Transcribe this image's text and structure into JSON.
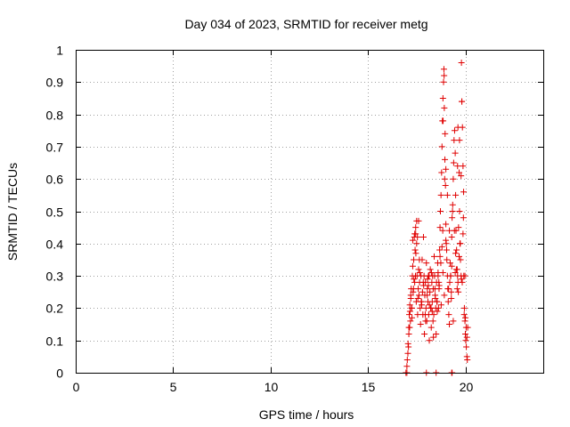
{
  "chart_data": {
    "type": "scatter",
    "title": "Day 034 of 2023, SRMTID for receiver metg",
    "xlabel": "GPS time / hours",
    "ylabel": "SRMTID / TECUs",
    "xlim": [
      0,
      24
    ],
    "ylim": [
      0,
      1
    ],
    "x_ticks": [
      0,
      5,
      10,
      15,
      20
    ],
    "x_tick_labels": [
      "0",
      "5",
      "10",
      "15",
      "20"
    ],
    "y_ticks": [
      0,
      0.1,
      0.2,
      0.3,
      0.4,
      0.5,
      0.6,
      0.7,
      0.8,
      0.9,
      1
    ],
    "y_tick_labels": [
      "0",
      "0.1",
      "0.2",
      "0.3",
      "0.4",
      "0.5",
      "0.6",
      "0.7",
      "0.8",
      "0.9",
      "1"
    ],
    "grid": true,
    "legend": "none",
    "marker": "plus",
    "color": "#e00000",
    "series": [
      {
        "name": "SRMTID",
        "x": [
          17.0,
          17.05,
          17.1,
          17.12,
          17.15,
          17.18,
          17.2,
          17.22,
          17.25,
          17.28,
          17.3,
          17.32,
          17.35,
          17.38,
          17.4,
          17.42,
          17.45,
          17.48,
          17.5,
          17.52,
          17.55,
          17.58,
          17.6,
          17.62,
          17.65,
          17.68,
          17.7,
          17.72,
          17.75,
          17.78,
          17.8,
          17.82,
          17.85,
          17.88,
          17.9,
          17.92,
          17.95,
          17.98,
          18.0,
          18.02,
          18.05,
          18.08,
          18.1,
          18.12,
          18.15,
          18.18,
          18.2,
          18.22,
          18.25,
          18.28,
          18.3,
          18.32,
          18.35,
          18.38,
          18.4,
          18.42,
          18.45,
          18.48,
          18.5,
          18.52,
          18.55,
          18.58,
          18.6,
          18.62,
          18.65,
          18.68,
          18.7,
          18.72,
          18.75,
          18.78,
          18.8,
          18.82,
          18.85,
          18.88,
          18.9,
          18.92,
          18.95,
          18.98,
          19.0,
          19.02,
          19.05,
          19.08,
          19.1,
          19.12,
          19.15,
          19.18,
          19.2,
          19.22,
          19.25,
          19.28,
          19.3,
          19.32,
          19.35,
          19.38,
          19.4,
          19.42,
          19.45,
          19.48,
          19.5,
          19.52,
          19.55,
          19.58,
          19.6,
          19.62,
          19.65,
          19.68,
          19.7,
          19.72,
          19.75,
          19.78,
          19.8,
          19.82,
          19.85,
          19.88,
          19.9,
          19.92,
          19.95,
          19.98,
          20.0,
          20.02,
          20.05,
          20.08,
          20.1,
          20.12,
          17.08,
          17.14,
          17.24,
          17.34,
          17.44,
          17.54,
          17.64,
          17.74,
          17.84,
          17.94,
          18.04,
          18.14,
          18.24,
          18.34,
          18.44,
          18.54,
          18.64,
          18.74,
          18.84,
          18.94,
          19.04,
          19.14,
          19.24,
          19.34,
          19.44,
          19.54,
          19.64,
          19.74,
          19.84,
          19.94,
          20.04,
          18.86,
          18.91,
          18.96,
          19.62,
          19.7,
          19.82,
          19.91,
          17.3,
          17.45,
          17.6,
          18.1,
          18.3,
          18.6,
          18.8,
          19.0,
          19.3,
          19.5,
          19.8,
          20.0,
          17.02,
          17.06,
          17.1,
          17.16,
          17.2,
          17.26,
          17.36,
          17.46,
          17.56,
          17.66,
          17.76,
          17.86,
          17.96,
          18.06,
          18.16,
          18.26,
          18.36,
          18.46,
          18.56,
          18.66,
          18.76,
          18.85,
          18.92,
          19.0,
          19.08,
          19.18,
          19.28,
          19.38,
          19.48,
          19.58,
          19.68,
          19.78,
          19.88,
          19.98,
          20.08,
          16.95,
          17.0,
          18.0,
          18.5,
          19.3,
          19.32,
          17.4,
          17.5,
          18.7,
          19.6
        ],
        "y": [
          0.02,
          0.06,
          0.12,
          0.18,
          0.21,
          0.16,
          0.23,
          0.26,
          0.2,
          0.3,
          0.33,
          0.25,
          0.35,
          0.42,
          0.28,
          0.38,
          0.45,
          0.22,
          0.4,
          0.3,
          0.18,
          0.26,
          0.32,
          0.24,
          0.28,
          0.2,
          0.15,
          0.3,
          0.22,
          0.35,
          0.25,
          0.18,
          0.42,
          0.3,
          0.12,
          0.24,
          0.28,
          0.2,
          0.34,
          0.16,
          0.26,
          0.22,
          0.3,
          0.18,
          0.1,
          0.25,
          0.32,
          0.2,
          0.14,
          0.28,
          0.22,
          0.3,
          0.26,
          0.18,
          0.36,
          0.3,
          0.24,
          0.2,
          0.12,
          0.28,
          0.22,
          0.34,
          0.3,
          0.2,
          0.26,
          0.38,
          0.45,
          0.5,
          0.55,
          0.62,
          0.7,
          0.78,
          0.85,
          0.9,
          0.94,
          0.82,
          0.66,
          0.58,
          0.46,
          0.4,
          0.35,
          0.3,
          0.26,
          0.22,
          0.18,
          0.15,
          0.28,
          0.34,
          0.3,
          0.25,
          0.42,
          0.48,
          0.52,
          0.6,
          0.65,
          0.72,
          0.75,
          0.68,
          0.55,
          0.44,
          0.38,
          0.32,
          0.3,
          0.28,
          0.45,
          0.62,
          0.5,
          0.4,
          0.35,
          0.3,
          0.96,
          0.84,
          0.76,
          0.64,
          0.48,
          0.3,
          0.2,
          0.16,
          0.12,
          0.1,
          0.08,
          0.05,
          0.04,
          0.14,
          0.08,
          0.14,
          0.2,
          0.26,
          0.3,
          0.42,
          0.35,
          0.22,
          0.28,
          0.18,
          0.24,
          0.3,
          0.2,
          0.16,
          0.26,
          0.22,
          0.28,
          0.34,
          0.44,
          0.6,
          0.38,
          0.26,
          0.3,
          0.5,
          0.44,
          0.32,
          0.25,
          0.4,
          0.28,
          0.18,
          0.14,
          0.78,
          0.92,
          0.74,
          0.76,
          0.72,
          0.84,
          0.56,
          0.41,
          0.43,
          0.47,
          0.27,
          0.19,
          0.31,
          0.39,
          0.41,
          0.33,
          0.37,
          0.29,
          0.17,
          0.04,
          0.09,
          0.14,
          0.19,
          0.24,
          0.17,
          0.29,
          0.37,
          0.23,
          0.31,
          0.21,
          0.27,
          0.16,
          0.29,
          0.21,
          0.31,
          0.11,
          0.23,
          0.19,
          0.27,
          0.21,
          0.31,
          0.24,
          0.63,
          0.55,
          0.44,
          0.23,
          0.16,
          0.31,
          0.26,
          0.36,
          0.61,
          0.43,
          0.3,
          0.11,
          0.0,
          0.0,
          0.0,
          0.0,
          0.0,
          0.0,
          0.43,
          0.47,
          0.36,
          0.64
        ]
      }
    ]
  }
}
